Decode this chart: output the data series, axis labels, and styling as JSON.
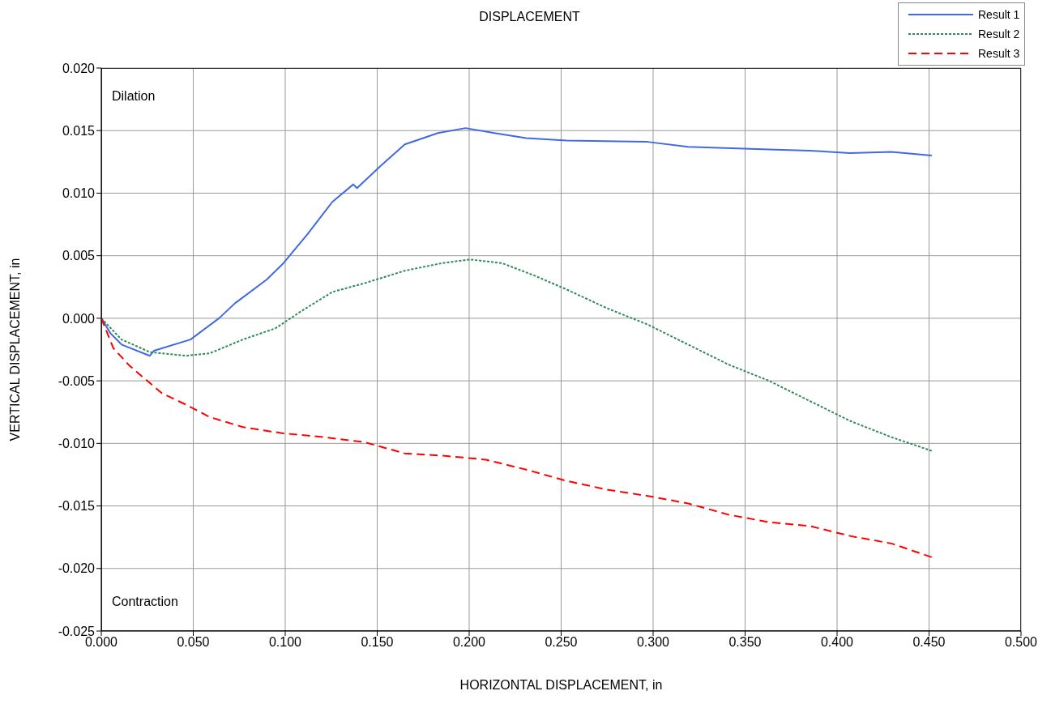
{
  "chart_data": {
    "type": "line",
    "title": "DISPLACEMENT",
    "xlabel": "HORIZONTAL DISPLACEMENT, in",
    "ylabel": "VERTICAL DISPLACEMENT, in",
    "annotations": [
      "Dilation",
      "Contraction"
    ],
    "xlim": [
      0,
      0.5
    ],
    "xticks": [
      {
        "value": 0,
        "label": "0.000"
      },
      {
        "value": 0.05,
        "label": "0.050"
      },
      {
        "value": 0.1,
        "label": "0.100"
      },
      {
        "value": 0.15,
        "label": "0.150"
      },
      {
        "value": 0.2,
        "label": "0.200"
      },
      {
        "value": 0.25,
        "label": "0.250"
      },
      {
        "value": 0.3,
        "label": "0.300"
      },
      {
        "value": 0.35,
        "label": "0.350"
      },
      {
        "value": 0.4,
        "label": "0.400"
      },
      {
        "value": 0.45,
        "label": "0.450"
      },
      {
        "value": 0.5,
        "label": "0.500"
      }
    ],
    "ylim": [
      -0.025,
      0.02
    ],
    "yticks": [
      {
        "value": -0.025,
        "label": "-0.025"
      },
      {
        "value": -0.02,
        "label": "-0.020"
      },
      {
        "value": -0.015,
        "label": "-0.015"
      },
      {
        "value": -0.01,
        "label": "-0.010"
      },
      {
        "value": -0.005,
        "label": "-0.005"
      },
      {
        "value": 0,
        "label": "0.000"
      },
      {
        "value": 0.005,
        "label": "0.005"
      },
      {
        "value": 0.01,
        "label": "0.010"
      },
      {
        "value": 0.015,
        "label": "0.015"
      },
      {
        "value": 0.02,
        "label": "0.020"
      }
    ],
    "grid": true,
    "legend": "top right",
    "marker": "none",
    "series": [
      {
        "name": "Result 1",
        "color": "#4169e1",
        "line_style": "solid",
        "x": [
          0,
          0.005,
          0.011,
          0.0264,
          0.0286,
          0.0485,
          0.064,
          0.0727,
          0.09,
          0.099,
          0.112,
          0.1256,
          0.137,
          0.139,
          0.152,
          0.165,
          0.183,
          0.198,
          0.2137,
          0.231,
          0.253,
          0.297,
          0.319,
          0.363,
          0.385,
          0.407,
          0.4295,
          0.4515
        ],
        "values": [
          0,
          -0.0012,
          -0.0021,
          -0.003,
          -0.0026,
          -0.0017,
          0,
          0.0012,
          0.0031,
          0.0044,
          0.0067,
          0.0093,
          0.0107,
          0.0104,
          0.0122,
          0.0139,
          0.0148,
          0.0152,
          0.0148,
          0.0144,
          0.0142,
          0.0141,
          0.0137,
          0.0135,
          0.0134,
          0.0132,
          0.0133,
          0.013
        ]
      },
      {
        "name": "Result 2",
        "color": "#2e8b57",
        "line_style": "dotted",
        "x": [
          0,
          0.011,
          0.0264,
          0.046,
          0.059,
          0.077,
          0.0947,
          0.108,
          0.1256,
          0.143,
          0.165,
          0.185,
          0.2004,
          0.218,
          0.2357,
          0.253,
          0.275,
          0.297,
          0.319,
          0.341,
          0.363,
          0.385,
          0.407,
          0.4295,
          0.4515
        ],
        "values": [
          0,
          -0.0017,
          -0.0027,
          -0.003,
          -0.0028,
          -0.0017,
          -0.0008,
          0.0005,
          0.0021,
          0.0028,
          0.0038,
          0.0044,
          0.0047,
          0.0044,
          0.0034,
          0.0023,
          0.0008,
          -0.0005,
          -0.0021,
          -0.0037,
          -0.005,
          -0.0066,
          -0.0082,
          -0.0095,
          -0.0106
        ]
      },
      {
        "name": "Result 3",
        "color": "#ff0000",
        "line_style": "dashed",
        "x": [
          0,
          0.0066,
          0.0154,
          0.0242,
          0.033,
          0.046,
          0.059,
          0.077,
          0.099,
          0.121,
          0.143,
          0.165,
          0.187,
          0.209,
          0.231,
          0.253,
          0.275,
          0.297,
          0.319,
          0.341,
          0.363,
          0.385,
          0.407,
          0.4295,
          0.4515
        ],
        "values": [
          0,
          -0.0024,
          -0.0038,
          -0.0049,
          -0.006,
          -0.0069,
          -0.0079,
          -0.0087,
          -0.0092,
          -0.0095,
          -0.0099,
          -0.0108,
          -0.011,
          -0.0113,
          -0.0121,
          -0.013,
          -0.0137,
          -0.0142,
          -0.0148,
          -0.0157,
          -0.0163,
          -0.0166,
          -0.0174,
          -0.018,
          -0.0191
        ]
      }
    ]
  }
}
